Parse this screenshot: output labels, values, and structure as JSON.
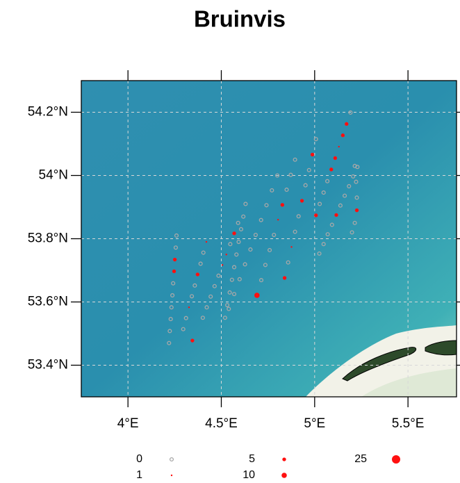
{
  "chart_data": {
    "type": "scatter",
    "title": "Bruinvis",
    "xlim": [
      3.75,
      5.76
    ],
    "ylim": [
      53.3,
      54.3
    ],
    "xticks": [
      {
        "value": 4,
        "label": "4°E"
      },
      {
        "value": 4.5,
        "label": "4.5°E"
      },
      {
        "value": 5,
        "label": "5°E"
      },
      {
        "value": 5.5,
        "label": "5.5°E"
      }
    ],
    "yticks": [
      {
        "value": 53.4,
        "label": "53.4°N"
      },
      {
        "value": 53.6,
        "label": "53.6°N"
      },
      {
        "value": 53.8,
        "label": "53.8°N"
      },
      {
        "value": 54,
        "label": "54°N"
      },
      {
        "value": 54.2,
        "label": "54.2°N"
      }
    ],
    "grid": true,
    "color": "#ff1010",
    "zero_color": "#a8a8a8",
    "x": [
      4.22,
      4.224,
      4.229,
      4.233,
      4.238,
      4.242,
      4.247,
      4.251,
      4.256,
      4.26,
      4.42,
      4.404,
      4.389,
      4.373,
      4.358,
      4.342,
      4.327,
      4.311,
      4.296,
      4.345,
      4.59,
      4.569,
      4.548,
      4.527,
      4.506,
      4.485,
      4.464,
      4.443,
      4.422,
      4.401,
      4.63,
      4.618,
      4.606,
      4.593,
      4.581,
      4.569,
      4.557,
      4.545,
      4.532,
      4.52,
      4.8,
      4.771,
      4.742,
      4.713,
      4.684,
      4.656,
      4.627,
      4.598,
      4.569,
      4.54,
      4.895,
      4.872,
      4.85,
      4.827,
      4.804,
      4.782,
      4.759,
      4.736,
      4.714,
      4.691,
      5.007,
      4.988,
      4.97,
      4.951,
      4.932,
      4.914,
      4.895,
      4.876,
      4.858,
      4.839,
      5.192,
      5.171,
      5.151,
      5.13,
      5.11,
      5.089,
      5.068,
      5.048,
      5.027,
      5.007,
      5.229,
      5.206,
      5.184,
      5.161,
      5.138,
      5.116,
      5.093,
      5.07,
      5.048,
      5.025,
      5.215,
      5.222,
      5.226,
      5.226,
      5.215,
      5.2
    ],
    "y": [
      53.47,
      53.508,
      53.546,
      53.583,
      53.621,
      53.659,
      53.697,
      53.734,
      53.772,
      53.81,
      53.79,
      53.756,
      53.721,
      53.687,
      53.652,
      53.618,
      53.583,
      53.549,
      53.514,
      53.478,
      53.85,
      53.817,
      53.783,
      53.75,
      53.717,
      53.683,
      53.65,
      53.617,
      53.583,
      53.55,
      53.91,
      53.87,
      53.83,
      53.79,
      53.75,
      53.71,
      53.67,
      53.63,
      53.59,
      53.55,
      54.0,
      53.953,
      53.906,
      53.859,
      53.812,
      53.766,
      53.719,
      53.672,
      53.625,
      53.578,
      54.05,
      54.002,
      53.955,
      53.907,
      53.86,
      53.812,
      53.764,
      53.717,
      53.669,
      53.621,
      54.115,
      54.066,
      54.017,
      53.969,
      53.92,
      53.871,
      53.822,
      53.774,
      53.725,
      53.676,
      54.199,
      54.163,
      54.127,
      54.091,
      54.055,
      54.019,
      53.982,
      53.946,
      53.91,
      53.874,
      54.027,
      53.997,
      53.966,
      53.936,
      53.905,
      53.875,
      53.844,
      53.814,
      53.783,
      53.753,
      54.03,
      53.98,
      53.93,
      53.89,
      53.85,
      53.82
    ],
    "size": [
      0,
      0,
      0,
      0,
      0,
      0,
      5,
      5,
      0,
      0,
      1,
      0,
      0,
      5,
      0,
      0,
      1,
      0,
      0,
      5,
      0,
      5,
      0,
      1,
      1,
      0,
      0,
      0,
      0,
      0,
      0,
      0,
      0,
      0,
      0,
      0,
      0,
      0,
      0,
      0,
      0,
      0,
      0,
      0,
      0,
      0,
      0,
      0,
      0,
      0,
      0,
      0,
      0,
      5,
      1,
      0,
      0,
      0,
      0,
      10,
      0,
      5,
      0,
      0,
      5,
      0,
      0,
      1,
      0,
      5,
      0,
      5,
      5,
      1,
      5,
      5,
      0,
      0,
      0,
      5,
      0,
      0,
      0,
      0,
      0,
      5,
      0,
      0,
      0,
      0,
      0,
      0,
      0,
      5,
      0,
      0
    ],
    "legend": [
      0,
      1,
      5,
      10,
      25
    ]
  }
}
